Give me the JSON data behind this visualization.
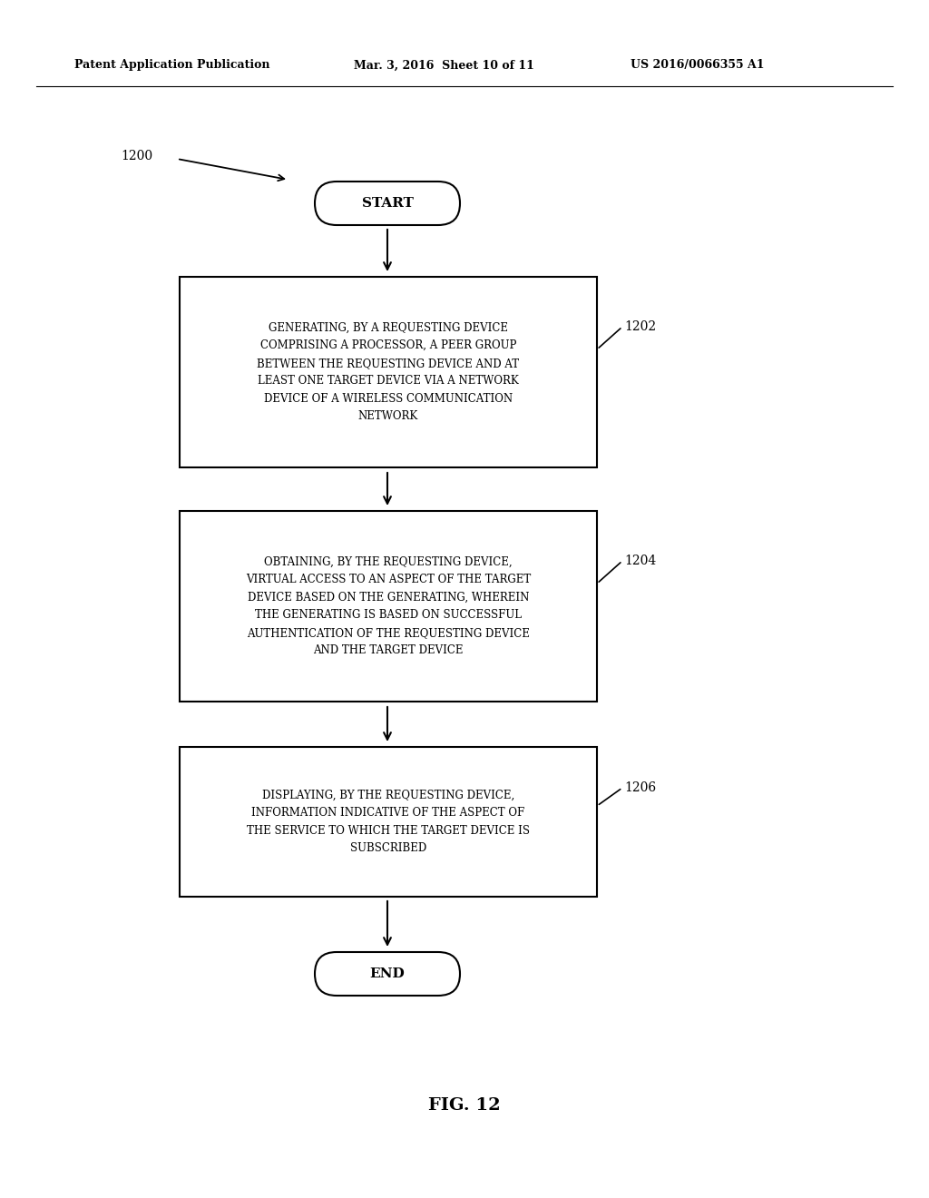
{
  "bg_color": "#ffffff",
  "header_left": "Patent Application Publication",
  "header_mid": "Mar. 3, 2016  Sheet 10 of 11",
  "header_right": "US 2016/0066355 A1",
  "fig_label": "FIG. 12",
  "diagram_label": "1200",
  "start_text": "START",
  "end_text": "END",
  "box1_text": "GENERATING, BY A REQUESTING DEVICE\nCOMPRISING A PROCESSOR, A PEER GROUP\nBETWEEN THE REQUESTING DEVICE AND AT\nLEAST ONE TARGET DEVICE VIA A NETWORK\nDEVICE OF A WIRELESS COMMUNICATION\nNETWORK",
  "box1_label": "1202",
  "box2_text": "OBTAINING, BY THE REQUESTING DEVICE,\nVIRTUAL ACCESS TO AN ASPECT OF THE TARGET\nDEVICE BASED ON THE GENERATING, WHEREIN\nTHE GENERATING IS BASED ON SUCCESSFUL\nAUTHENTICATION OF THE REQUESTING DEVICE\nAND THE TARGET DEVICE",
  "box2_label": "1204",
  "box3_text": "DISPLAYING, BY THE REQUESTING DEVICE,\nINFORMATION INDICATIVE OF THE ASPECT OF\nTHE SERVICE TO WHICH THE TARGET DEVICE IS\nSUBSCRIBED",
  "box3_label": "1206",
  "text_color": "#000000",
  "box_edge_color": "#000000",
  "box_fill_color": "#ffffff",
  "arrow_color": "#000000",
  "font_family": "DejaVu Serif"
}
